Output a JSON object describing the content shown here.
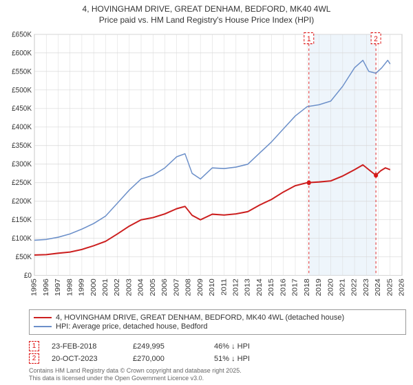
{
  "title_line1": "4, HOVINGHAM DRIVE, GREAT DENHAM, BEDFORD, MK40 4WL",
  "title_line2": "Price paid vs. HM Land Registry's House Price Index (HPI)",
  "chart": {
    "type": "line",
    "x": {
      "label_years": [
        1995,
        1996,
        1997,
        1998,
        1999,
        2000,
        2001,
        2002,
        2003,
        2004,
        2005,
        2006,
        2007,
        2008,
        2009,
        2010,
        2011,
        2012,
        2013,
        2014,
        2015,
        2016,
        2017,
        2018,
        2019,
        2020,
        2021,
        2022,
        2023,
        2024,
        2025,
        2026
      ],
      "xmin": 1995,
      "xmax": 2026
    },
    "y": {
      "ymin": 0,
      "ymax": 650000,
      "tick_step": 50000,
      "tick_labels": [
        "£0",
        "£50K",
        "£100K",
        "£150K",
        "£200K",
        "£250K",
        "£300K",
        "£350K",
        "£400K",
        "£450K",
        "£500K",
        "£550K",
        "£600K",
        "£650K"
      ]
    },
    "plot_bg": "#ffffff",
    "grid_color": "#d8d8d8",
    "axis_color": "#888",
    "band": {
      "x_from": 2018.15,
      "x_to": 2023.8,
      "fill": "#cfe2f3",
      "opacity": 0.35
    },
    "markers": [
      {
        "label": "1",
        "x": 2018.15,
        "y": 249995
      },
      {
        "label": "2",
        "x": 2023.8,
        "y": 270000
      }
    ],
    "marker_style": {
      "box_stroke": "#d11",
      "box_dash": "3,2",
      "box_fill": "none",
      "text_color": "#d11",
      "vline_dash": "3,3",
      "vline_color": "#d11"
    },
    "series": [
      {
        "name": "hpi",
        "color": "#6b8fc9",
        "width": 1.4,
        "points": [
          [
            1995,
            95000
          ],
          [
            1996,
            97000
          ],
          [
            1997,
            103000
          ],
          [
            1998,
            112000
          ],
          [
            1999,
            125000
          ],
          [
            2000,
            140000
          ],
          [
            2001,
            160000
          ],
          [
            2002,
            195000
          ],
          [
            2003,
            230000
          ],
          [
            2004,
            260000
          ],
          [
            2005,
            270000
          ],
          [
            2006,
            290000
          ],
          [
            2007,
            320000
          ],
          [
            2007.7,
            328000
          ],
          [
            2008.3,
            275000
          ],
          [
            2009,
            260000
          ],
          [
            2010,
            290000
          ],
          [
            2011,
            288000
          ],
          [
            2012,
            292000
          ],
          [
            2013,
            300000
          ],
          [
            2014,
            330000
          ],
          [
            2015,
            360000
          ],
          [
            2016,
            395000
          ],
          [
            2017,
            430000
          ],
          [
            2018,
            455000
          ],
          [
            2019,
            460000
          ],
          [
            2020,
            470000
          ],
          [
            2021,
            510000
          ],
          [
            2022,
            560000
          ],
          [
            2022.7,
            580000
          ],
          [
            2023.2,
            550000
          ],
          [
            2023.8,
            545000
          ],
          [
            2024.3,
            560000
          ],
          [
            2024.8,
            580000
          ],
          [
            2025,
            570000
          ]
        ]
      },
      {
        "name": "price_paid",
        "color": "#cc1f1f",
        "width": 1.8,
        "points": [
          [
            1995,
            55000
          ],
          [
            1996,
            56000
          ],
          [
            1997,
            60000
          ],
          [
            1998,
            63000
          ],
          [
            1999,
            70000
          ],
          [
            2000,
            80000
          ],
          [
            2001,
            92000
          ],
          [
            2002,
            112000
          ],
          [
            2003,
            133000
          ],
          [
            2004,
            150000
          ],
          [
            2005,
            156000
          ],
          [
            2006,
            166000
          ],
          [
            2007,
            180000
          ],
          [
            2007.7,
            186000
          ],
          [
            2008.3,
            162000
          ],
          [
            2009,
            150000
          ],
          [
            2010,
            165000
          ],
          [
            2011,
            163000
          ],
          [
            2012,
            166000
          ],
          [
            2013,
            172000
          ],
          [
            2014,
            190000
          ],
          [
            2015,
            205000
          ],
          [
            2016,
            225000
          ],
          [
            2017,
            242000
          ],
          [
            2018,
            249995
          ],
          [
            2019,
            252000
          ],
          [
            2020,
            255000
          ],
          [
            2021,
            268000
          ],
          [
            2022,
            285000
          ],
          [
            2022.7,
            298000
          ],
          [
            2023.2,
            285000
          ],
          [
            2023.8,
            270000
          ],
          [
            2024.2,
            282000
          ],
          [
            2024.6,
            290000
          ],
          [
            2025,
            285000
          ]
        ]
      }
    ]
  },
  "legend": {
    "items": [
      {
        "label": "4, HOVINGHAM DRIVE, GREAT DENHAM, BEDFORD, MK40 4WL (detached house)",
        "color": "#cc1f1f",
        "weight": 2
      },
      {
        "label": "HPI: Average price, detached house, Bedford",
        "color": "#6b8fc9",
        "weight": 2
      }
    ]
  },
  "sales": [
    {
      "marker": "1",
      "date": "23-FEB-2018",
      "price": "£249,995",
      "diff": "46% ↓ HPI"
    },
    {
      "marker": "2",
      "date": "20-OCT-2023",
      "price": "£270,000",
      "diff": "51% ↓ HPI"
    }
  ],
  "footer_line1": "Contains HM Land Registry data © Crown copyright and database right 2025.",
  "footer_line2": "This data is licensed under the Open Government Licence v3.0."
}
